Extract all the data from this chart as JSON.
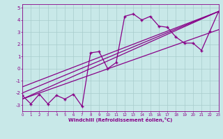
{
  "xlabel": "Windchill (Refroidissement éolien,°C)",
  "xlim": [
    0,
    23
  ],
  "ylim": [
    -3.5,
    5.3
  ],
  "yticks": [
    -3,
    -2,
    -1,
    0,
    1,
    2,
    3,
    4,
    5
  ],
  "xticks": [
    0,
    1,
    2,
    3,
    4,
    5,
    6,
    7,
    8,
    9,
    10,
    11,
    12,
    13,
    14,
    15,
    16,
    17,
    18,
    19,
    20,
    21,
    22,
    23
  ],
  "background_color": "#c8e8e8",
  "grid_color": "#a8cccc",
  "line_color": "#880088",
  "series": [
    [
      0,
      -2.2
    ],
    [
      1,
      -2.9
    ],
    [
      2,
      -2.1
    ],
    [
      3,
      -2.9
    ],
    [
      4,
      -2.2
    ],
    [
      5,
      -2.5
    ],
    [
      6,
      -2.1
    ],
    [
      7,
      -3.1
    ],
    [
      8,
      1.3
    ],
    [
      9,
      1.4
    ],
    [
      10,
      0.0
    ],
    [
      11,
      0.5
    ],
    [
      12,
      4.3
    ],
    [
      13,
      4.5
    ],
    [
      14,
      4.0
    ],
    [
      15,
      4.3
    ],
    [
      16,
      3.5
    ],
    [
      17,
      3.4
    ],
    [
      18,
      2.6
    ],
    [
      19,
      2.1
    ],
    [
      20,
      2.1
    ],
    [
      21,
      1.5
    ],
    [
      22,
      3.1
    ],
    [
      23,
      4.7
    ]
  ],
  "straight_lines": [
    {
      "x": [
        0,
        23
      ],
      "y": [
        -2.5,
        4.7
      ]
    },
    {
      "x": [
        0,
        23
      ],
      "y": [
        -2.0,
        4.7
      ]
    },
    {
      "x": [
        0,
        23
      ],
      "y": [
        -1.5,
        4.7
      ]
    },
    {
      "x": [
        0,
        23
      ],
      "y": [
        -2.5,
        3.2
      ]
    }
  ],
  "marker_style": "+",
  "marker_size": 3.5,
  "linewidth": 0.9
}
